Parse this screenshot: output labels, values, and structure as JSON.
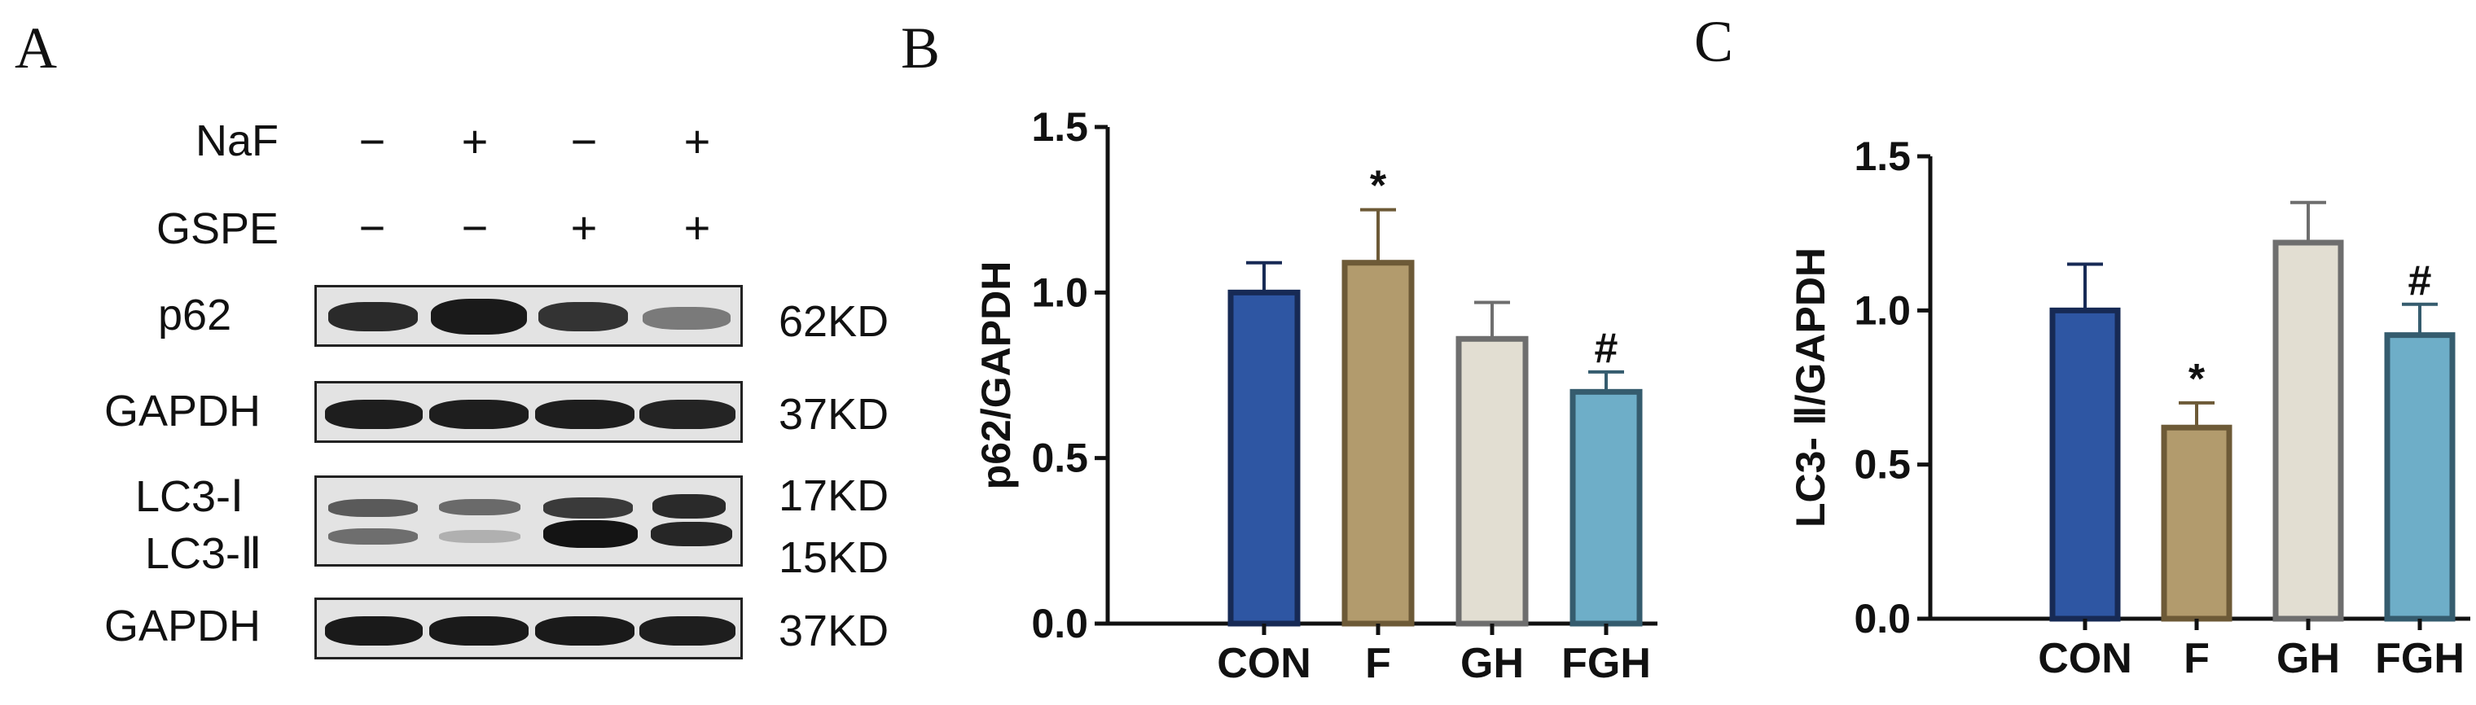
{
  "panels": {
    "a": "A",
    "b": "B",
    "c": "C"
  },
  "blot": {
    "conditions": [
      {
        "name": "NaF",
        "signs": [
          "−",
          "+",
          "−",
          "+"
        ]
      },
      {
        "name": "GSPE",
        "signs": [
          "−",
          "−",
          "+",
          "+"
        ]
      }
    ],
    "rows": {
      "p62": {
        "label": "p62",
        "kd": "62KD"
      },
      "gapdh1": {
        "label": "GAPDH",
        "kd": "37KD"
      },
      "lc3": {
        "label_i": "LC3-Ⅰ",
        "label_ii": "LC3-Ⅱ",
        "kd_i": "17KD",
        "kd_ii": "15KD"
      },
      "gapdh2": {
        "label": "GAPDH",
        "kd": "37KD"
      }
    }
  },
  "chart_data": [
    {
      "type": "bar",
      "panel": "B",
      "title": "",
      "xlabel": "",
      "ylabel": "p62/GAPDH",
      "categories": [
        "CON",
        "F",
        "GH",
        "FGH"
      ],
      "values": [
        1.0,
        1.09,
        0.86,
        0.7
      ],
      "errors": [
        0.09,
        0.16,
        0.11,
        0.06
      ],
      "annotations": [
        "",
        "*",
        "",
        "#"
      ],
      "colors": [
        "#2e56a3",
        "#b29b6d",
        "#e2ded2",
        "#6eaec8"
      ],
      "edge_colors": [
        "#172a55",
        "#6d5a37",
        "#6e6e6e",
        "#355c6e"
      ],
      "ylim": [
        0,
        1.5
      ],
      "yticks": [
        "0.0",
        "0.5",
        "1.0",
        "1.5"
      ],
      "ytick_values": [
        0,
        0.5,
        1.0,
        1.5
      ],
      "grid": false
    },
    {
      "type": "bar",
      "panel": "C",
      "title": "",
      "xlabel": "",
      "ylabel": "LC3- Ⅱ/GAPDH",
      "categories": [
        "CON",
        "F",
        "GH",
        "FGH"
      ],
      "values": [
        1.0,
        0.62,
        1.22,
        0.92
      ],
      "errors": [
        0.15,
        0.08,
        0.13,
        0.1
      ],
      "annotations": [
        "",
        "*",
        "",
        "#"
      ],
      "colors": [
        "#2e56a3",
        "#b29b6d",
        "#e2ded2",
        "#6eaec8"
      ],
      "edge_colors": [
        "#172a55",
        "#6d5a37",
        "#6e6e6e",
        "#355c6e"
      ],
      "ylim": [
        0,
        1.5
      ],
      "yticks": [
        "0.0",
        "0.5",
        "1.0",
        "1.5"
      ],
      "ytick_values": [
        0,
        0.5,
        1.0,
        1.5
      ],
      "grid": false
    }
  ]
}
